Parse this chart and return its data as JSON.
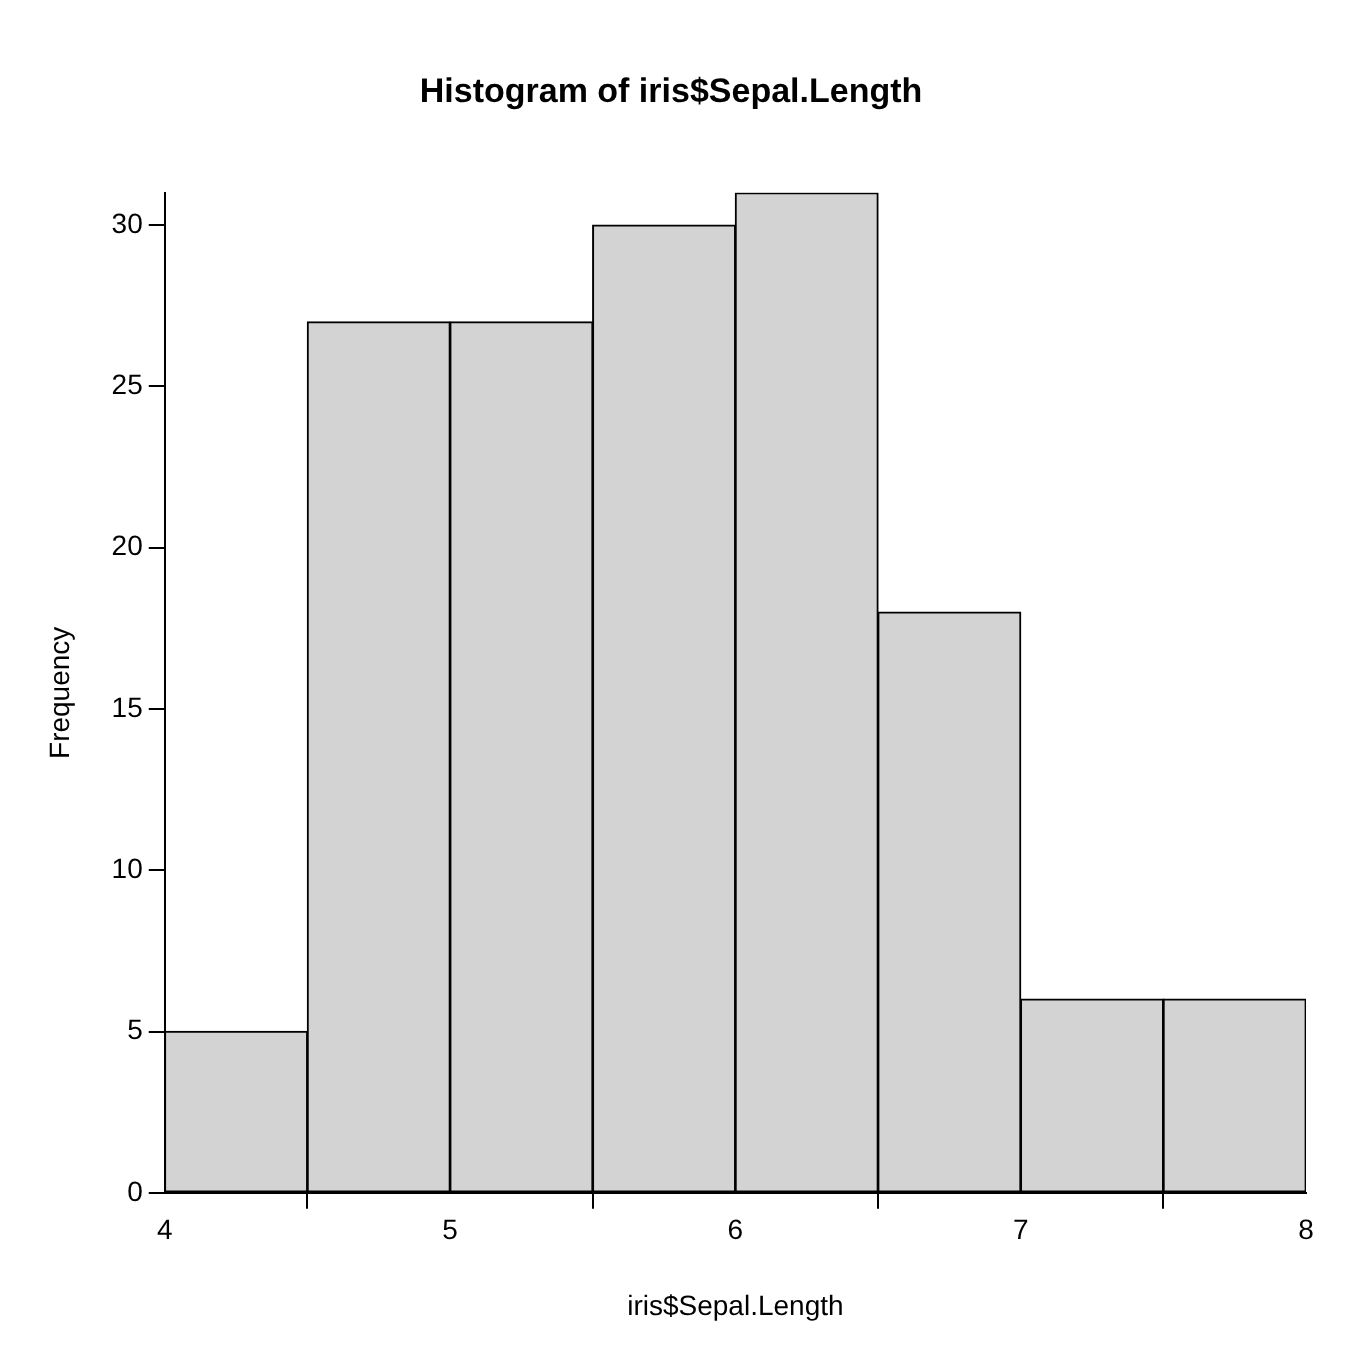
{
  "chart_data": {
    "type": "histogram",
    "title": "Histogram of iris$Sepal.Length",
    "xlabel": "iris$Sepal.Length",
    "ylabel": "Frequency",
    "bins": [
      4,
      4.5,
      5,
      5.5,
      6,
      6.5,
      7,
      7.5,
      8
    ],
    "values": [
      5,
      27,
      27,
      30,
      31,
      18,
      6,
      6
    ],
    "color": "#d3d3d3",
    "xlim": [
      4,
      8
    ],
    "xticks": [
      4,
      5,
      6,
      7,
      8
    ],
    "ylim": [
      0,
      31
    ],
    "yticks": [
      0,
      5,
      10,
      15,
      20,
      25,
      30
    ],
    "grid": false,
    "legend": false
  }
}
